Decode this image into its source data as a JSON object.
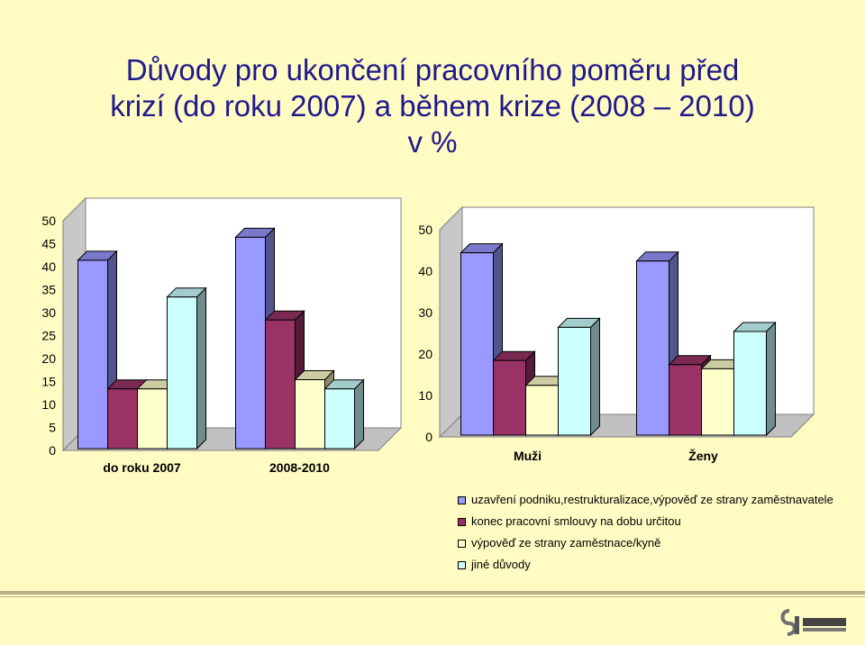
{
  "title": {
    "line1": "Důvody pro ukončení pracovního poměru před",
    "line2": "krizí (do roku 2007) a během krize (2008 – 2010)",
    "line3": "v %"
  },
  "colors": {
    "background": "#fffbc2",
    "title": "#1f1a8c",
    "series": [
      "#9999ff",
      "#993366",
      "#ffffcc",
      "#ccffff"
    ]
  },
  "legend": {
    "items": [
      "uzavření podniku,restrukturalizace,výpověď ze strany zaměstnavatele",
      "konec pracovní smlouvy na dobu určitou",
      "výpověď ze strany zaměstnace/kyně",
      "jiné důvody"
    ]
  },
  "chart_data": [
    {
      "type": "bar",
      "categories": [
        "do roku 2007",
        "2008-2010"
      ],
      "series": [
        {
          "name": "uzavření podniku,restrukturalizace,výpověď ze strany zaměstnavatele",
          "values": [
            41,
            46
          ]
        },
        {
          "name": "konec pracovní smlouvy na dobu určitou",
          "values": [
            13,
            28
          ]
        },
        {
          "name": "výpověď ze strany zaměstnace/kyně",
          "values": [
            13,
            15
          ]
        },
        {
          "name": "jiné důvody",
          "values": [
            33,
            13
          ]
        }
      ],
      "yticks": [
        0,
        5,
        10,
        15,
        20,
        25,
        30,
        35,
        40,
        45,
        50
      ],
      "ylim": [
        0,
        50
      ]
    },
    {
      "type": "bar",
      "categories": [
        "Muži",
        "Ženy"
      ],
      "series": [
        {
          "name": "uzavření podniku,restrukturalizace,výpověď ze strany zaměstnavatele",
          "values": [
            44,
            42
          ]
        },
        {
          "name": "konec pracovní smlouvy na dobu určitou",
          "values": [
            18,
            17
          ]
        },
        {
          "name": "výpověď ze strany zaměstnace/kyně",
          "values": [
            12,
            16
          ]
        },
        {
          "name": "jiné důvody",
          "values": [
            26,
            25
          ]
        }
      ],
      "yticks": [
        0,
        10,
        20,
        30,
        40,
        50
      ],
      "ylim": [
        0,
        50
      ]
    }
  ]
}
